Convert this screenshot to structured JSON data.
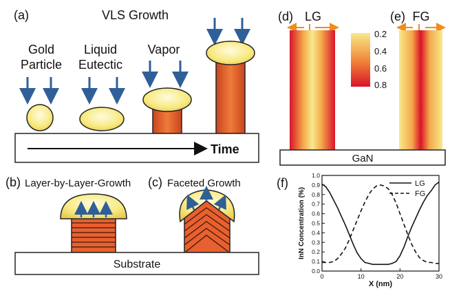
{
  "panels": {
    "a": {
      "label": "(a)",
      "title": "VLS Growth",
      "gold_line1": "Gold",
      "gold_line2": "Particle",
      "liquid_line1": "Liquid",
      "liquid_line2": "Eutectic",
      "vapor": "Vapor",
      "time": "Time"
    },
    "b": {
      "label": "(b)",
      "title": "Layer-by-Layer-Growth"
    },
    "c": {
      "label": "(c)",
      "title": "Faceted Growth"
    },
    "substrate": "Substrate",
    "d": {
      "label": "(d)",
      "title": "LG"
    },
    "e": {
      "label": "(e)",
      "title": "FG"
    },
    "gan": "GaN",
    "colorbar": {
      "ticks": [
        "0.2",
        "0.4",
        "0.6",
        "0.8"
      ],
      "colors": {
        "low": "#f8e98a",
        "mid": "#e8532a",
        "high": "#d9142a"
      }
    },
    "f": {
      "label": "(f)"
    }
  },
  "colors": {
    "arrow": "#2f5f98",
    "cap": "#f8ea82",
    "pillar": "#e45a2a",
    "accent_arrow": "#f28c1c"
  },
  "chart_data": {
    "type": "line",
    "title": "",
    "xlabel": "X (nm)",
    "ylabel": "InN Concentration (%)",
    "xlim": [
      0,
      30
    ],
    "ylim": [
      0,
      1.0
    ],
    "xticks": [
      "0",
      "10",
      "20",
      "30"
    ],
    "yticks": [
      "0.0",
      "0.1",
      "0.2",
      "0.3",
      "0.4",
      "0.5",
      "0.6",
      "0.7",
      "0.8",
      "0.9",
      "1.0"
    ],
    "grid": false,
    "legend": "top-right",
    "series": [
      {
        "name": "LG",
        "style": "solid",
        "x": [
          0,
          1,
          2,
          3,
          4,
          5,
          6,
          7,
          8,
          9,
          10,
          11,
          12,
          13,
          14,
          15,
          16,
          17,
          18,
          19,
          20,
          21,
          22,
          23,
          24,
          25,
          26,
          27,
          28,
          29,
          30
        ],
        "y": [
          0.91,
          0.88,
          0.82,
          0.74,
          0.66,
          0.57,
          0.48,
          0.38,
          0.28,
          0.19,
          0.13,
          0.09,
          0.08,
          0.07,
          0.07,
          0.07,
          0.07,
          0.07,
          0.08,
          0.1,
          0.16,
          0.25,
          0.36,
          0.46,
          0.55,
          0.64,
          0.72,
          0.79,
          0.84,
          0.9,
          0.93
        ]
      },
      {
        "name": "FG",
        "style": "dashed",
        "x": [
          0,
          1,
          2,
          3,
          4,
          5,
          6,
          7,
          8,
          9,
          10,
          11,
          12,
          13,
          14,
          15,
          16,
          17,
          18,
          19,
          20,
          21,
          22,
          23,
          24,
          25,
          26,
          27,
          28,
          29,
          30
        ],
        "y": [
          0.09,
          0.09,
          0.09,
          0.1,
          0.13,
          0.18,
          0.24,
          0.33,
          0.43,
          0.53,
          0.63,
          0.72,
          0.8,
          0.86,
          0.89,
          0.9,
          0.89,
          0.86,
          0.8,
          0.71,
          0.6,
          0.49,
          0.38,
          0.28,
          0.2,
          0.14,
          0.11,
          0.09,
          0.09,
          0.08,
          0.08
        ]
      }
    ]
  }
}
